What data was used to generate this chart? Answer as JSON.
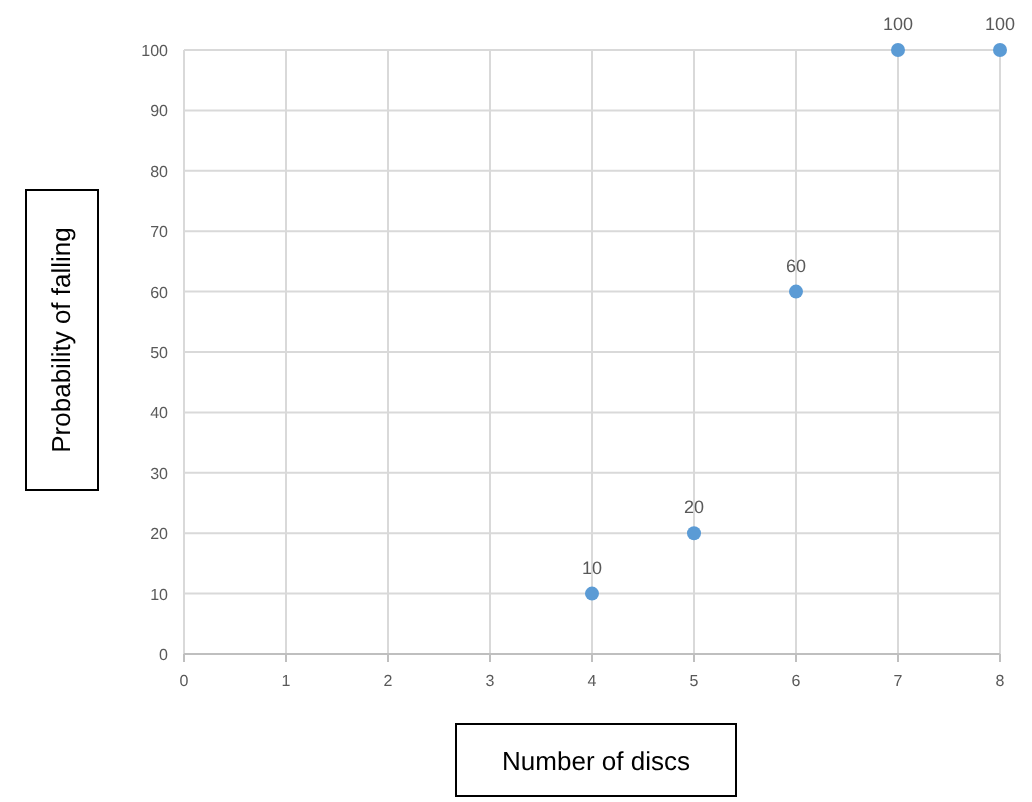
{
  "chart_data": {
    "type": "scatter",
    "xlabel": "Number of discs",
    "ylabel": "Probability of falling",
    "x": [
      4,
      5,
      6,
      7,
      8
    ],
    "series": [
      {
        "color": "#5b9bd5",
        "values": [
          10,
          20,
          60,
          100,
          100
        ]
      }
    ],
    "xlim": [
      0,
      8
    ],
    "xticks": [
      0,
      1,
      2,
      3,
      4,
      5,
      6,
      7,
      8
    ],
    "ylim": [
      0,
      100
    ],
    "yticks": [
      0,
      10,
      20,
      30,
      40,
      50,
      60,
      70,
      80,
      90,
      100
    ],
    "grid": true,
    "data_labels": true,
    "marker": "circle"
  }
}
